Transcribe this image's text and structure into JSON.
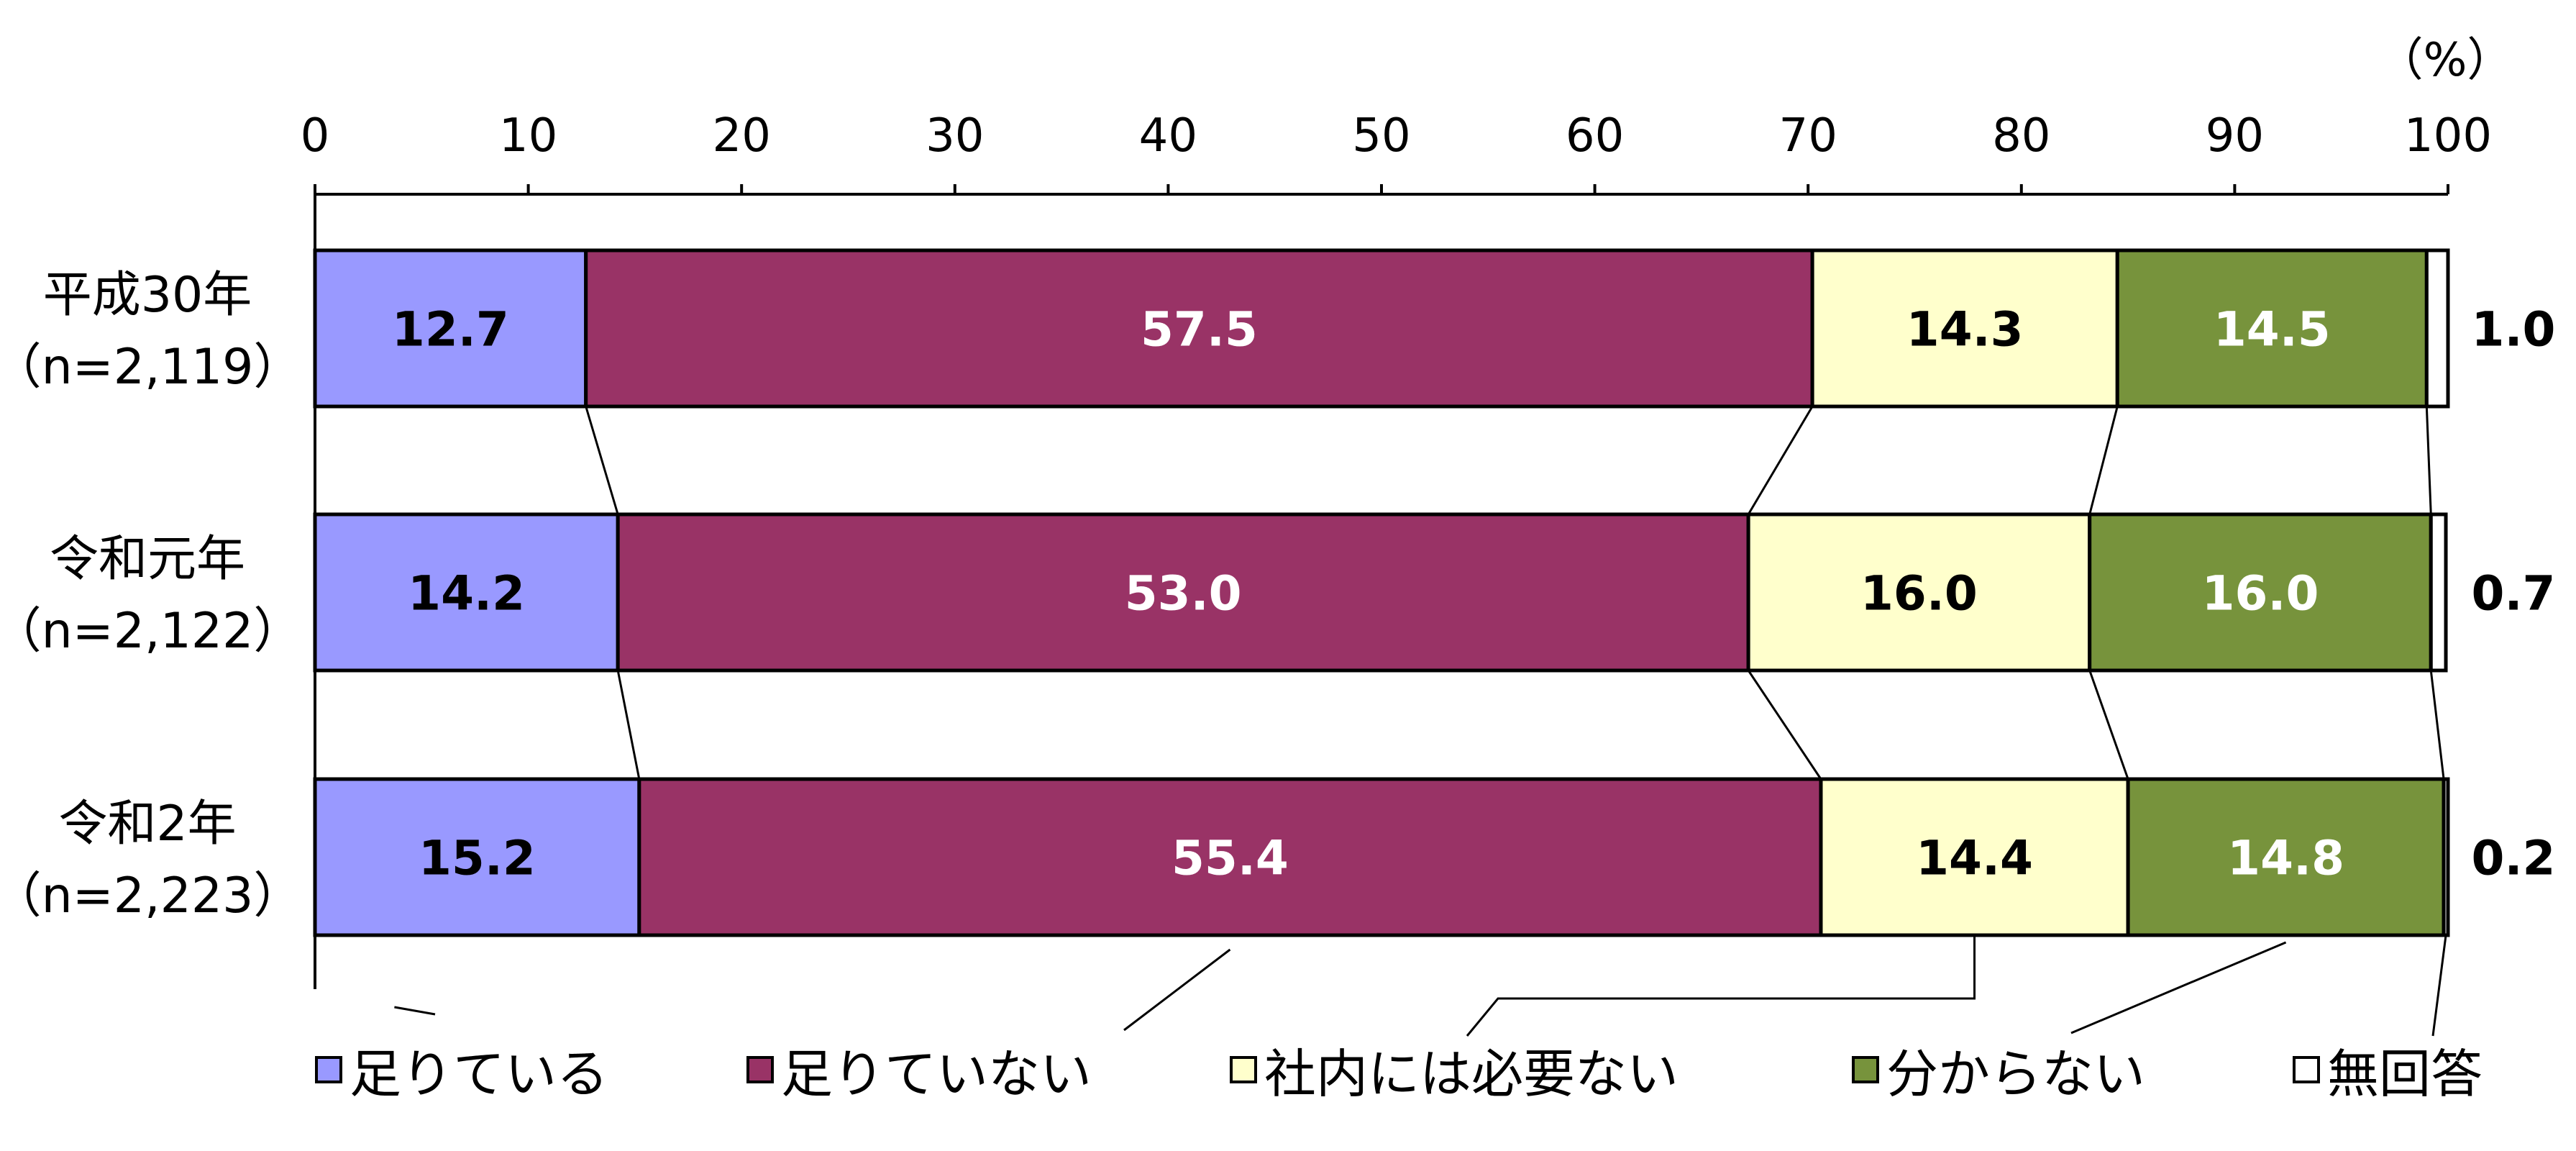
{
  "chart_data": {
    "type": "bar",
    "orientation": "horizontal",
    "stacked": true,
    "unit_label": "（%）",
    "xlim": [
      0,
      100
    ],
    "xticks": [
      "0",
      "10",
      "20",
      "30",
      "40",
      "50",
      "60",
      "70",
      "80",
      "90",
      "100"
    ],
    "categories": [
      {
        "line1": "平成30年",
        "line2": "（n=2,119）"
      },
      {
        "line1": "令和元年",
        "line2": "（n=2,122）"
      },
      {
        "line1": "令和2年",
        "line2": "（n=2,223）"
      }
    ],
    "series": [
      {
        "name": "足りている",
        "color": "#9999FF",
        "text_color": "#000000",
        "values": [
          12.7,
          14.2,
          15.2
        ]
      },
      {
        "name": "足りていない",
        "color": "#993366",
        "text_color": "#FFFFFF",
        "values": [
          57.5,
          53.0,
          55.4
        ]
      },
      {
        "name": "社内には必要ない",
        "color": "#FFFFCC",
        "text_color": "#000000",
        "values": [
          14.3,
          16.0,
          14.4
        ]
      },
      {
        "name": "分からない",
        "color": "#77933C",
        "text_color": "#FFFFFF",
        "values": [
          14.5,
          16.0,
          14.8
        ]
      },
      {
        "name": "無回答",
        "color": "#FFFFFF",
        "text_color": "#000000",
        "values": [
          1.0,
          0.7,
          0.2
        ]
      }
    ],
    "legend_position": "bottom",
    "grid": false
  }
}
